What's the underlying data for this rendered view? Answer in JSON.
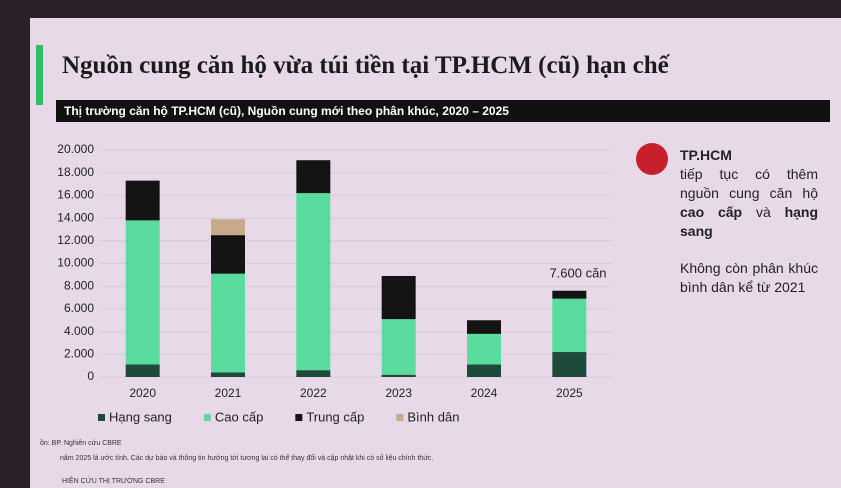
{
  "slide_title": "Nguồn cung căn hộ vừa túi tiền tại TP.HCM (cũ) hạn chế",
  "chart_data": {
    "type": "stacked-bar",
    "title": "Thị trường căn hộ TP.HCM (cũ), Nguồn cung mới theo phân khúc, 2020 – 2025",
    "categories": [
      "2020",
      "2021",
      "2022",
      "2023",
      "2024",
      "2025"
    ],
    "series": [
      {
        "name": "Hạng sang",
        "color": "#1d4a3a",
        "values": [
          1100,
          400,
          600,
          200,
          1100,
          2200
        ]
      },
      {
        "name": "Cao cấp",
        "color": "#5bdc9f",
        "values": [
          12700,
          8700,
          15600,
          4900,
          2700,
          4700
        ]
      },
      {
        "name": "Trung cấp",
        "color": "#141414",
        "values": [
          3500,
          3400,
          2900,
          3800,
          1200,
          700
        ]
      },
      {
        "name": "Bình dân",
        "color": "#c7ab88",
        "values": [
          null,
          1400,
          null,
          null,
          null,
          null
        ]
      }
    ],
    "ylim": [
      0,
      20000
    ],
    "yticks": [
      0,
      {
        "value": 2000,
        "label": "2.000"
      },
      {
        "value": 4000,
        "label": "4.000"
      },
      {
        "value": 6000,
        "label": "6.000"
      },
      {
        "value": 8000,
        "label": "8.000"
      },
      {
        "value": 10000,
        "label": "10.000"
      },
      {
        "value": 12000,
        "label": "12.000"
      },
      {
        "value": 14000,
        "label": "14.000"
      },
      {
        "value": 16000,
        "label": "16.000"
      },
      {
        "value": 18000,
        "label": "18.000"
      },
      {
        "value": 20000,
        "label": "20.000"
      }
    ],
    "grid": true,
    "annotation": "7.600 căn"
  },
  "sidebar": {
    "heading": "TP.HCM",
    "text1": "tiếp tục có thêm nguồn cung căn hộ",
    "bold1": "cao cấp",
    "and": "và",
    "bold2": "hạng sang",
    "text2": "Không còn phân khúc bình dân kể từ 2021"
  },
  "source": "ồn: BP. Nghiên cứu CBRE",
  "note": "năm 2025 là ước tính. Các dự báo và thông tin hướng tới tương lai có thể thay đổi và cập nhật khi có số liệu chính thức.",
  "footer": "HIÊN CỨU THỊ TRƯỜNG CBRE"
}
